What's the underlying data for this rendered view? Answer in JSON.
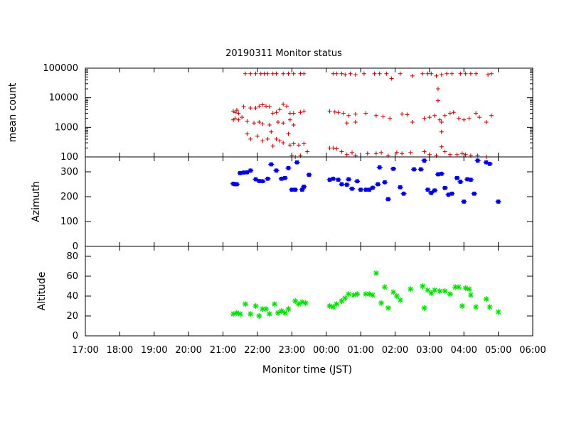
{
  "chart_data": {
    "type": "scatter",
    "title": "20190311 Monitor status",
    "xlabel": "Monitor time (JST)",
    "x_ticks": [
      "17:00",
      "18:00",
      "19:00",
      "20:00",
      "21:00",
      "22:00",
      "23:00",
      "00:00",
      "01:00",
      "02:00",
      "03:00",
      "04:00",
      "05:00",
      "06:00"
    ],
    "x_range_hours": [
      17,
      30
    ],
    "panels": [
      {
        "ylabel": "mean count",
        "scale": "log",
        "ylim": [
          100,
          100000
        ],
        "y_ticks": [
          "100",
          "1000",
          "10000",
          "100000"
        ],
        "y_tick_values": [
          100,
          1000,
          10000,
          100000
        ],
        "marker": "+",
        "color": "#c00000",
        "points": [
          [
            21.65,
            65000
          ],
          [
            21.8,
            65000
          ],
          [
            21.95,
            65000
          ],
          [
            22.1,
            65000
          ],
          [
            22.2,
            65000
          ],
          [
            22.3,
            65000
          ],
          [
            22.45,
            65000
          ],
          [
            22.55,
            65000
          ],
          [
            22.75,
            65000
          ],
          [
            22.9,
            65000
          ],
          [
            23.05,
            65000
          ],
          [
            23.25,
            65000
          ],
          [
            23.35,
            65000
          ],
          [
            24.2,
            65000
          ],
          [
            24.3,
            65000
          ],
          [
            24.45,
            65000
          ],
          [
            24.55,
            60000
          ],
          [
            24.7,
            65000
          ],
          [
            24.85,
            60000
          ],
          [
            25.1,
            65000
          ],
          [
            25.4,
            65000
          ],
          [
            25.55,
            65000
          ],
          [
            25.75,
            65000
          ],
          [
            25.9,
            45000
          ],
          [
            26.15,
            65000
          ],
          [
            26.5,
            55000
          ],
          [
            26.8,
            65000
          ],
          [
            26.95,
            65000
          ],
          [
            27.05,
            65000
          ],
          [
            27.2,
            55000
          ],
          [
            27.35,
            60000
          ],
          [
            27.5,
            65000
          ],
          [
            27.65,
            65000
          ],
          [
            27.9,
            65000
          ],
          [
            28.05,
            65000
          ],
          [
            28.2,
            65000
          ],
          [
            28.35,
            65000
          ],
          [
            28.7,
            60000
          ],
          [
            28.8,
            65000
          ],
          [
            21.3,
            3500
          ],
          [
            21.35,
            3200
          ],
          [
            21.4,
            3800
          ],
          [
            21.45,
            3000
          ],
          [
            21.6,
            5000
          ],
          [
            21.8,
            4500
          ],
          [
            21.95,
            4500
          ],
          [
            22.05,
            5200
          ],
          [
            22.15,
            5800
          ],
          [
            22.25,
            5200
          ],
          [
            22.35,
            5000
          ],
          [
            22.45,
            3000
          ],
          [
            22.55,
            3200
          ],
          [
            22.65,
            4000
          ],
          [
            22.75,
            6000
          ],
          [
            22.85,
            5200
          ],
          [
            22.95,
            3000
          ],
          [
            23.05,
            3000
          ],
          [
            23.25,
            3200
          ],
          [
            23.35,
            3500
          ],
          [
            21.3,
            1800
          ],
          [
            21.35,
            2000
          ],
          [
            21.45,
            1800
          ],
          [
            21.55,
            2200
          ],
          [
            21.7,
            1600
          ],
          [
            21.9,
            1400
          ],
          [
            22.05,
            1500
          ],
          [
            22.15,
            1300
          ],
          [
            22.35,
            1200
          ],
          [
            22.6,
            1500
          ],
          [
            22.75,
            1400
          ],
          [
            22.95,
            1800
          ],
          [
            23.05,
            1200
          ],
          [
            21.7,
            600
          ],
          [
            21.8,
            400
          ],
          [
            22.0,
            500
          ],
          [
            22.15,
            350
          ],
          [
            22.3,
            400
          ],
          [
            22.4,
            700
          ],
          [
            22.55,
            400
          ],
          [
            22.65,
            350
          ],
          [
            22.75,
            300
          ],
          [
            22.9,
            600
          ],
          [
            22.95,
            250
          ],
          [
            23.05,
            280
          ],
          [
            23.2,
            250
          ],
          [
            23.35,
            280
          ],
          [
            22.45,
            230
          ],
          [
            23.0,
            110
          ],
          [
            23.1,
            100
          ],
          [
            23.25,
            110
          ],
          [
            23.45,
            150
          ],
          [
            24.1,
            3500
          ],
          [
            24.25,
            3300
          ],
          [
            24.35,
            3200
          ],
          [
            24.5,
            3000
          ],
          [
            24.65,
            2500
          ],
          [
            24.85,
            2800
          ],
          [
            25.15,
            3000
          ],
          [
            25.45,
            2500
          ],
          [
            25.65,
            2300
          ],
          [
            25.85,
            2000
          ],
          [
            26.2,
            2800
          ],
          [
            26.35,
            2700
          ],
          [
            26.5,
            1500
          ],
          [
            26.85,
            2000
          ],
          [
            27.0,
            2200
          ],
          [
            27.15,
            2500
          ],
          [
            27.3,
            1800
          ],
          [
            27.45,
            2500
          ],
          [
            27.6,
            3000
          ],
          [
            27.7,
            3200
          ],
          [
            27.85,
            2000
          ],
          [
            28.0,
            1800
          ],
          [
            28.15,
            2000
          ],
          [
            28.35,
            3000
          ],
          [
            28.45,
            2200
          ],
          [
            28.65,
            1500
          ],
          [
            28.8,
            2500
          ],
          [
            24.6,
            1400
          ],
          [
            24.85,
            1500
          ],
          [
            27.25,
            8000
          ],
          [
            27.25,
            20000
          ],
          [
            27.35,
            1500
          ],
          [
            27.35,
            700
          ],
          [
            24.1,
            200
          ],
          [
            24.2,
            200
          ],
          [
            24.3,
            190
          ],
          [
            24.45,
            150
          ],
          [
            24.6,
            120
          ],
          [
            24.75,
            140
          ],
          [
            24.85,
            110
          ],
          [
            25.2,
            130
          ],
          [
            25.45,
            130
          ],
          [
            25.6,
            140
          ],
          [
            25.8,
            110
          ],
          [
            26.05,
            140
          ],
          [
            26.2,
            130
          ],
          [
            26.45,
            140
          ],
          [
            26.85,
            150
          ],
          [
            27.0,
            120
          ],
          [
            27.2,
            110
          ],
          [
            27.35,
            220
          ],
          [
            27.45,
            150
          ],
          [
            27.6,
            120
          ],
          [
            27.8,
            120
          ],
          [
            27.95,
            130
          ],
          [
            28.05,
            120
          ],
          [
            28.2,
            110
          ],
          [
            28.4,
            110
          ],
          [
            28.65,
            100
          ]
        ]
      },
      {
        "ylabel": "Azimuth",
        "scale": "linear",
        "ylim": [
          0,
          360
        ],
        "y_ticks": [
          "0",
          "100",
          "200",
          "300"
        ],
        "y_tick_values": [
          0,
          100,
          200,
          300
        ],
        "marker": "square",
        "color": "#0000e0",
        "points": [
          [
            21.3,
            252
          ],
          [
            21.35,
            250
          ],
          [
            21.4,
            250
          ],
          [
            21.5,
            295
          ],
          [
            21.6,
            297
          ],
          [
            21.7,
            298
          ],
          [
            21.8,
            305
          ],
          [
            21.95,
            270
          ],
          [
            22.05,
            263
          ],
          [
            22.15,
            262
          ],
          [
            22.3,
            272
          ],
          [
            22.4,
            330
          ],
          [
            22.55,
            305
          ],
          [
            22.7,
            272
          ],
          [
            22.8,
            275
          ],
          [
            22.9,
            315
          ],
          [
            23.0,
            228
          ],
          [
            23.1,
            228
          ],
          [
            23.15,
            338
          ],
          [
            23.3,
            228
          ],
          [
            23.35,
            240
          ],
          [
            23.5,
            288
          ],
          [
            24.1,
            268
          ],
          [
            24.2,
            272
          ],
          [
            24.35,
            268
          ],
          [
            24.45,
            250
          ],
          [
            24.6,
            248
          ],
          [
            24.65,
            270
          ],
          [
            24.75,
            232
          ],
          [
            24.9,
            262
          ],
          [
            25.0,
            228
          ],
          [
            25.15,
            228
          ],
          [
            25.25,
            228
          ],
          [
            25.35,
            236
          ],
          [
            25.5,
            250
          ],
          [
            25.55,
            318
          ],
          [
            25.7,
            258
          ],
          [
            25.8,
            190
          ],
          [
            25.95,
            312
          ],
          [
            26.15,
            238
          ],
          [
            26.25,
            212
          ],
          [
            26.55,
            310
          ],
          [
            26.75,
            310
          ],
          [
            26.85,
            345
          ],
          [
            26.95,
            228
          ],
          [
            27.05,
            215
          ],
          [
            27.15,
            225
          ],
          [
            27.25,
            290
          ],
          [
            27.35,
            292
          ],
          [
            27.45,
            235
          ],
          [
            27.55,
            208
          ],
          [
            27.65,
            212
          ],
          [
            27.8,
            275
          ],
          [
            27.9,
            260
          ],
          [
            28.0,
            180
          ],
          [
            28.1,
            270
          ],
          [
            28.2,
            268
          ],
          [
            28.3,
            212
          ],
          [
            28.4,
            345
          ],
          [
            28.65,
            338
          ],
          [
            28.75,
            332
          ],
          [
            29.0,
            180
          ]
        ]
      },
      {
        "ylabel": "Altitude",
        "scale": "linear",
        "ylim": [
          0,
          90
        ],
        "y_ticks": [
          "0",
          "20",
          "40",
          "60",
          "80"
        ],
        "y_tick_values": [
          0,
          20,
          40,
          60,
          80
        ],
        "marker": "star",
        "color": "#00e000",
        "points": [
          [
            21.3,
            22
          ],
          [
            21.4,
            23
          ],
          [
            21.5,
            22
          ],
          [
            21.65,
            32
          ],
          [
            21.8,
            22
          ],
          [
            21.95,
            30
          ],
          [
            22.05,
            20
          ],
          [
            22.15,
            27
          ],
          [
            22.25,
            27
          ],
          [
            22.35,
            22
          ],
          [
            22.5,
            32
          ],
          [
            22.6,
            23
          ],
          [
            22.7,
            25
          ],
          [
            22.8,
            23
          ],
          [
            22.9,
            27
          ],
          [
            23.1,
            35
          ],
          [
            23.2,
            32
          ],
          [
            23.3,
            34
          ],
          [
            23.4,
            33
          ],
          [
            24.1,
            30
          ],
          [
            24.2,
            29
          ],
          [
            24.3,
            32
          ],
          [
            24.45,
            35
          ],
          [
            24.55,
            38
          ],
          [
            24.65,
            42
          ],
          [
            24.8,
            41
          ],
          [
            24.9,
            42
          ],
          [
            25.15,
            42
          ],
          [
            25.25,
            42
          ],
          [
            25.35,
            41
          ],
          [
            25.45,
            63
          ],
          [
            25.6,
            33
          ],
          [
            25.7,
            49
          ],
          [
            25.8,
            28
          ],
          [
            25.95,
            44
          ],
          [
            26.05,
            40
          ],
          [
            26.15,
            36
          ],
          [
            26.45,
            47
          ],
          [
            26.8,
            50
          ],
          [
            26.85,
            28
          ],
          [
            26.95,
            46
          ],
          [
            27.05,
            43
          ],
          [
            27.15,
            46
          ],
          [
            27.3,
            45
          ],
          [
            27.45,
            45
          ],
          [
            27.6,
            42
          ],
          [
            27.75,
            49
          ],
          [
            27.85,
            49
          ],
          [
            27.95,
            30
          ],
          [
            28.05,
            48
          ],
          [
            28.15,
            47
          ],
          [
            28.2,
            41
          ],
          [
            28.35,
            29
          ],
          [
            28.65,
            37
          ],
          [
            28.75,
            29
          ],
          [
            29.0,
            24
          ]
        ]
      }
    ]
  }
}
